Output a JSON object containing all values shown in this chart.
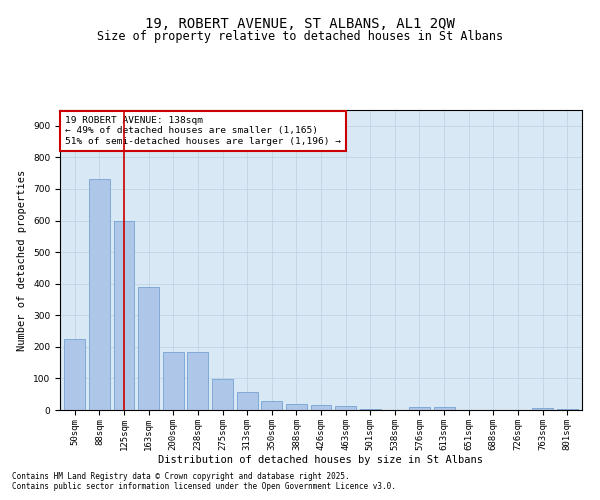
{
  "title1": "19, ROBERT AVENUE, ST ALBANS, AL1 2QW",
  "title2": "Size of property relative to detached houses in St Albans",
  "xlabel": "Distribution of detached houses by size in St Albans",
  "ylabel": "Number of detached properties",
  "categories": [
    "50sqm",
    "88sqm",
    "125sqm",
    "163sqm",
    "200sqm",
    "238sqm",
    "275sqm",
    "313sqm",
    "350sqm",
    "388sqm",
    "426sqm",
    "463sqm",
    "501sqm",
    "538sqm",
    "576sqm",
    "613sqm",
    "651sqm",
    "688sqm",
    "726sqm",
    "763sqm",
    "801sqm"
  ],
  "values": [
    225,
    730,
    600,
    390,
    185,
    185,
    97,
    57,
    28,
    20,
    16,
    14,
    3,
    0,
    10,
    8,
    0,
    0,
    0,
    5,
    2
  ],
  "bar_color": "#aec6e8",
  "bar_edge_color": "#6699cc",
  "vline_x": 2,
  "vline_color": "#cc0000",
  "annotation_text": "19 ROBERT AVENUE: 138sqm\n← 49% of detached houses are smaller (1,165)\n51% of semi-detached houses are larger (1,196) →",
  "annotation_box_color": "#cc0000",
  "annotation_bg": "#ffffff",
  "ylim": [
    0,
    950
  ],
  "yticks": [
    0,
    100,
    200,
    300,
    400,
    500,
    600,
    700,
    800,
    900
  ],
  "grid_color": "#c0d4e8",
  "bg_color": "#d8e8f4",
  "footer1": "Contains HM Land Registry data © Crown copyright and database right 2025.",
  "footer2": "Contains public sector information licensed under the Open Government Licence v3.0.",
  "title_fontsize": 10,
  "subtitle_fontsize": 8.5,
  "axis_label_fontsize": 7.5,
  "tick_fontsize": 6.5,
  "annot_fontsize": 6.8,
  "footer_fontsize": 5.5
}
